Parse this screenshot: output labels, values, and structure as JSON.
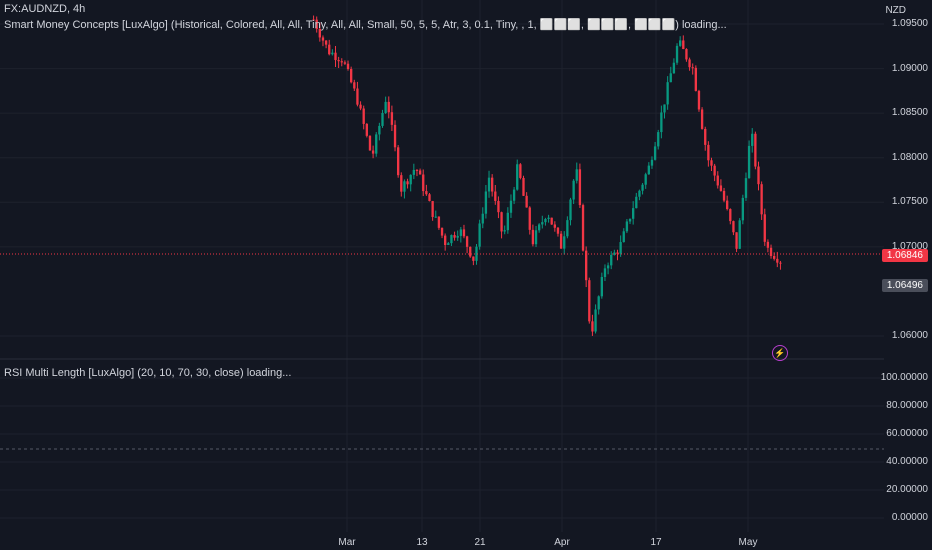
{
  "header": {
    "symbol": "FX:AUDNZD, 4h",
    "indicator1": "Smart Money Concepts [LuxAlgo] (Historical, Colored, All, All, Tiny, All, All, Small, 50, 5, 5, Atr, 3, 0.1, Tiny, , 1, ⬜⬜⬜, ⬜⬜⬜, ⬜⬜⬜) loading...",
    "indicator2": "RSI Multi Length [LuxAlgo] (20, 10, 70, 30, close) loading..."
  },
  "price_axis": {
    "currency": "NZD",
    "labels": [
      "1.09500",
      "1.09000",
      "1.08500",
      "1.08000",
      "1.07500",
      "1.07000",
      "1.06000"
    ],
    "last_price": "1.06846",
    "crosshair_price": "1.06496"
  },
  "rsi_axis": {
    "labels": [
      "100.00000",
      "80.00000",
      "60.00000",
      "40.00000",
      "20.00000",
      "0.00000"
    ]
  },
  "time_axis": {
    "labels": [
      "Mar",
      "13",
      "21",
      "Apr",
      "17",
      "May"
    ]
  },
  "colors": {
    "background": "#131722",
    "up": "#089981",
    "down": "#f23645",
    "grid": "#1e222d",
    "text": "#d1d4dc"
  },
  "icons": {
    "alert": "lightning-bolt-icon"
  },
  "chart_data": {
    "type": "candlestick",
    "symbol": "FX:AUDNZD",
    "interval": "4h",
    "ylim": [
      1.058,
      1.0975
    ],
    "close_path": [
      {
        "x": "Feb 24",
        "y": 1.0955
      },
      {
        "x": "Feb 26",
        "y": 1.092
      },
      {
        "x": "Feb 28",
        "y": 1.091
      },
      {
        "x": "Mar 1",
        "y": 1.0865
      },
      {
        "x": "Mar 2",
        "y": 1.08
      },
      {
        "x": "Mar 4",
        "y": 1.087
      },
      {
        "x": "Mar 6",
        "y": 1.0765
      },
      {
        "x": "Mar 8",
        "y": 1.079
      },
      {
        "x": "Mar 10",
        "y": 1.0745
      },
      {
        "x": "Mar 12",
        "y": 1.0705
      },
      {
        "x": "Mar 14",
        "y": 1.072
      },
      {
        "x": "Mar 16",
        "y": 1.0685
      },
      {
        "x": "Mar 18",
        "y": 1.078
      },
      {
        "x": "Mar 20",
        "y": 1.071
      },
      {
        "x": "Mar 22",
        "y": 1.079
      },
      {
        "x": "Mar 24",
        "y": 1.0705
      },
      {
        "x": "Mar 27",
        "y": 1.074
      },
      {
        "x": "Mar 30",
        "y": 1.07
      },
      {
        "x": "Apr 2",
        "y": 1.079
      },
      {
        "x": "Apr 4",
        "y": 1.06
      },
      {
        "x": "Apr 6",
        "y": 1.068
      },
      {
        "x": "Apr 8",
        "y": 1.07
      },
      {
        "x": "Apr 12",
        "y": 1.075
      },
      {
        "x": "Apr 15",
        "y": 1.079
      },
      {
        "x": "Apr 18",
        "y": 1.086
      },
      {
        "x": "Apr 22",
        "y": 1.093
      },
      {
        "x": "Apr 25",
        "y": 1.09
      },
      {
        "x": "Apr 28",
        "y": 1.08
      },
      {
        "x": "Apr 30",
        "y": 1.076
      },
      {
        "x": "May 2",
        "y": 1.07
      },
      {
        "x": "May 3",
        "y": 1.083
      },
      {
        "x": "May 5",
        "y": 1.07
      },
      {
        "x": "May 7",
        "y": 1.0685
      }
    ],
    "last_price": 1.06846,
    "rsi_panel": {
      "ylim": [
        0,
        100
      ],
      "status": "loading"
    }
  }
}
